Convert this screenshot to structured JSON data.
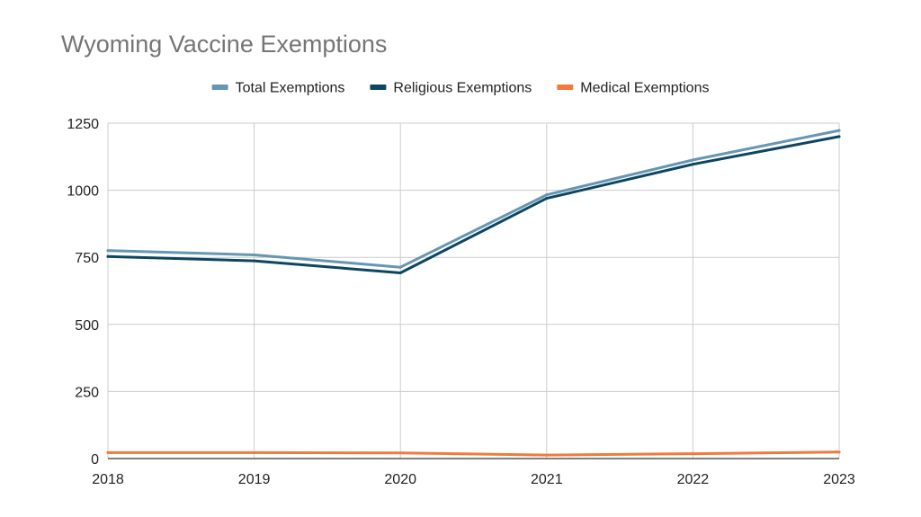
{
  "chart_data": {
    "type": "line",
    "title": "Wyoming Vaccine Exemptions",
    "xlabel": "",
    "ylabel": "",
    "categories": [
      "2018",
      "2019",
      "2020",
      "2021",
      "2022",
      "2023"
    ],
    "series": [
      {
        "name": "Total Exemptions",
        "color": "#6596B4",
        "values": [
          775,
          759,
          713,
          983,
          1113,
          1223
        ]
      },
      {
        "name": "Religious Exemptions",
        "color": "#0D4660",
        "values": [
          753,
          737,
          692,
          970,
          1097,
          1200
        ]
      },
      {
        "name": "Medical Exemptions",
        "color": "#F2793B",
        "values": [
          22,
          22,
          21,
          13,
          18,
          24
        ]
      }
    ],
    "ylim": [
      0,
      1250
    ],
    "yticks": [
      "0",
      "250",
      "500",
      "750",
      "1000",
      "1250"
    ],
    "grid": true,
    "legend_position": "top"
  }
}
